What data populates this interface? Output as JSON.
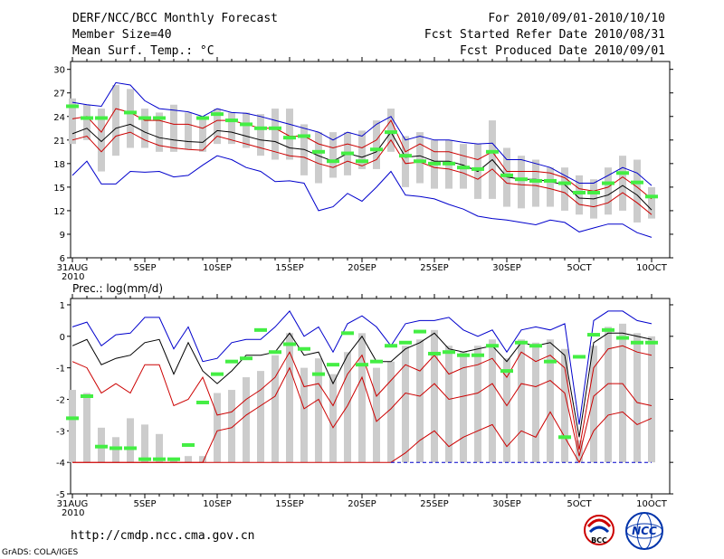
{
  "header": {
    "title": "DERF/NCC/BCC Monthly Forecast",
    "member": "Member Size=40",
    "variable1": "Mean Surf. Temp.: °C",
    "period": "For 2010/09/01-2010/10/10",
    "started": "Fcst Started Refer Date 2010/08/31",
    "produced": "Fcst Produced Date 2010/09/01"
  },
  "footer": {
    "url": "http://cmdp.ncc.cma.gov.cn",
    "grads": "GrADS: COLA/IGES",
    "logo1": "BCC",
    "logo2": "NCC"
  },
  "x_ticks": [
    "31AUG",
    "5SEP",
    "10SEP",
    "15SEP",
    "20SEP",
    "25SEP",
    "30SEP",
    "5OCT",
    "10OCT"
  ],
  "x_year": "2010",
  "colors": {
    "blue": "#0000cc",
    "red": "#cc0000",
    "mean": "#000000",
    "obs": "#44ee44",
    "box": "#cccccc",
    "dashed": "#0000cc"
  },
  "chart_data": [
    {
      "type": "line",
      "title": "Mean Surf. Temp.: °C",
      "x_start_label": "31AUG",
      "days": 41,
      "ylim": [
        6,
        31
      ],
      "yticks": [
        6,
        9,
        12,
        15,
        18,
        21,
        24,
        27,
        30
      ],
      "series": [
        {
          "name": "max",
          "color": "blue",
          "values": [
            25.8,
            25.5,
            25.3,
            28.3,
            28,
            26,
            25,
            24.8,
            24.6,
            24,
            25,
            24.5,
            24.4,
            24,
            23.5,
            23,
            22.5,
            22,
            21,
            22,
            21.5,
            23,
            24,
            21,
            21.5,
            21,
            21,
            20.7,
            20.5,
            20.6,
            18.5,
            18.5,
            18,
            17.5,
            16.5,
            15.5,
            15.5,
            16.5,
            17.5,
            16.8,
            15.2
          ]
        },
        {
          "name": "upper",
          "color": "red",
          "values": [
            23.7,
            24,
            22,
            25,
            24.5,
            23.5,
            23.5,
            23,
            23,
            22.5,
            23.5,
            23.5,
            23,
            22.5,
            22.5,
            21.5,
            21.5,
            20.5,
            20,
            20.5,
            20,
            21,
            23.5,
            19.5,
            20.5,
            19.5,
            19.5,
            19,
            18.5,
            19.5,
            17,
            17,
            17,
            16.8,
            16.2,
            14.8,
            14.5,
            15,
            16.3,
            15,
            13.5
          ]
        },
        {
          "name": "mean",
          "color": "mean",
          "values": [
            21.8,
            22.5,
            20.8,
            22.5,
            23,
            22,
            21.3,
            21,
            20.8,
            20.7,
            22.2,
            22,
            21.5,
            21,
            20.8,
            20,
            19.8,
            19,
            18.3,
            19.3,
            18.8,
            19.5,
            22,
            18.8,
            19,
            18.3,
            18.3,
            17.8,
            17,
            18.5,
            16.3,
            16,
            16,
            15.7,
            15.3,
            13.6,
            13.5,
            14,
            15.2,
            14,
            12.1
          ]
        },
        {
          "name": "lower",
          "color": "red",
          "values": [
            21,
            21.5,
            19.5,
            21.5,
            22,
            21,
            20.3,
            20,
            19.8,
            19.7,
            21.5,
            21,
            20.5,
            20,
            19.5,
            19,
            18.8,
            18,
            17.5,
            18.3,
            17.7,
            18.5,
            21,
            18,
            18.2,
            17.5,
            17.3,
            16.8,
            16,
            17.3,
            15.5,
            15.3,
            15.2,
            14.8,
            14.3,
            12.8,
            12.5,
            13,
            14.3,
            13,
            11.5
          ]
        },
        {
          "name": "min",
          "color": "blue",
          "values": [
            16.5,
            18.3,
            15.4,
            15.4,
            17,
            16.9,
            17,
            16.3,
            16.5,
            17.8,
            19,
            18.5,
            17.5,
            17,
            15.7,
            15.8,
            15.5,
            12,
            12.5,
            14.2,
            13.2,
            15,
            17,
            14,
            13.8,
            13.5,
            12.8,
            12.2,
            11.3,
            11,
            10.8,
            10.5,
            10.2,
            10.8,
            10.5,
            9.3,
            9.8,
            10.3,
            10.3,
            9.2,
            8.6
          ]
        }
      ],
      "boxes": [
        [
          20.5,
          26.3
        ],
        [
          21,
          25.5
        ],
        [
          17,
          25
        ],
        [
          19,
          28
        ],
        [
          20,
          27.5
        ],
        [
          20,
          25
        ],
        [
          19.5,
          24.5
        ],
        [
          19.5,
          25.5
        ],
        [
          19.8,
          24.5
        ],
        [
          19.5,
          24
        ],
        [
          20.5,
          25
        ],
        [
          20.5,
          24.5
        ],
        [
          20,
          24.5
        ],
        [
          19,
          24.3
        ],
        [
          18.5,
          25
        ],
        [
          18.5,
          25
        ],
        [
          16.5,
          23
        ],
        [
          15.5,
          22
        ],
        [
          16.2,
          22
        ],
        [
          16.5,
          22
        ],
        [
          17.3,
          22.2
        ],
        [
          17.3,
          23.5
        ],
        [
          19.5,
          25
        ],
        [
          15,
          21.5
        ],
        [
          15.5,
          22
        ],
        [
          14.8,
          21
        ],
        [
          14.8,
          21
        ],
        [
          14.8,
          20.5
        ],
        [
          13.5,
          20.5
        ],
        [
          13.5,
          23.5
        ],
        [
          12.5,
          20
        ],
        [
          12.3,
          19
        ],
        [
          12.5,
          18.5
        ],
        [
          12.5,
          17.5
        ],
        [
          12,
          17.5
        ],
        [
          11.5,
          16.5
        ],
        [
          11,
          16
        ],
        [
          11.5,
          17.5
        ],
        [
          12,
          19
        ],
        [
          10.5,
          18.5
        ],
        [
          11,
          15
        ]
      ],
      "observed": [
        25.3,
        23.8,
        23.8,
        null,
        24.5,
        23.8,
        23.8,
        null,
        null,
        23.8,
        24.3,
        23.5,
        23,
        22.5,
        22.5,
        21.3,
        21.5,
        19.5,
        18.3,
        19.3,
        18.3,
        19.8,
        22,
        19,
        18.3,
        18,
        18,
        17.5,
        17.3,
        19.5,
        16.5,
        16,
        15.8,
        15.8,
        15.5,
        14.3,
        14.3,
        15.5,
        16.8,
        15.6,
        13.8
      ]
    },
    {
      "type": "line",
      "title": "Prec.: log(mm/d)",
      "x_start_label": "31AUG",
      "days": 41,
      "ylim": [
        -5,
        1.2
      ],
      "yticks": [
        -5,
        -4,
        -3,
        -2,
        -1,
        0,
        1
      ],
      "series": [
        {
          "name": "max",
          "color": "blue",
          "values": [
            0.3,
            0.45,
            -0.3,
            0.05,
            0.1,
            0.6,
            0.6,
            -0.4,
            0.3,
            -0.8,
            -0.7,
            -0.2,
            -0.1,
            -0.1,
            0.3,
            0.8,
            0,
            0.3,
            -0.5,
            0.4,
            0.65,
            0.3,
            -0.3,
            0.4,
            0.5,
            0.5,
            0.6,
            0.2,
            0,
            0.2,
            -0.5,
            0.2,
            0.3,
            0.2,
            0.4,
            -2.8,
            0.5,
            0.8,
            0.8,
            0.5,
            0.4
          ]
        },
        {
          "name": "upper",
          "color": "black",
          "values": [
            -0.3,
            -0.1,
            -0.9,
            -0.7,
            -0.6,
            -0.2,
            -0.1,
            -1.2,
            -0.2,
            -1.1,
            -1.5,
            -1.1,
            -0.6,
            -0.6,
            -0.5,
            0.1,
            -0.6,
            -0.5,
            -1.5,
            -0.6,
            0,
            -0.8,
            -0.8,
            -0.4,
            -0.2,
            0.1,
            -0.4,
            -0.5,
            -0.4,
            -0.3,
            -0.8,
            -0.2,
            -0.3,
            -0.2,
            -0.6,
            -3.2,
            -0.2,
            0.1,
            0.1,
            0,
            -0.1
          ]
        },
        {
          "name": "mean",
          "color": "red",
          "values": [
            -0.8,
            -1,
            -1.8,
            -1.5,
            -1.8,
            -0.9,
            -0.9,
            -2.2,
            -2,
            -1.3,
            -2.5,
            -2.4,
            -2,
            -1.7,
            -1.3,
            -0.5,
            -1.6,
            -1.5,
            -2.2,
            -1.2,
            -0.6,
            -1.9,
            -1.4,
            -0.9,
            -1.1,
            -0.6,
            -1.2,
            -1,
            -0.9,
            -0.7,
            -1.3,
            -0.5,
            -0.8,
            -0.6,
            -1,
            -3.6,
            -1,
            -0.4,
            -0.3,
            -0.5,
            -0.6
          ]
        },
        {
          "name": "lower",
          "color": "red",
          "values": [
            -4,
            -4,
            -4,
            -4,
            -4,
            -4,
            -4,
            -4,
            -4,
            -4,
            -3,
            -2.9,
            -2.5,
            -2.2,
            -1.9,
            -1,
            -2.3,
            -2,
            -2.9,
            -2.2,
            -1.3,
            -2.7,
            -2.3,
            -1.8,
            -1.9,
            -1.5,
            -2,
            -1.9,
            -1.8,
            -1.5,
            -2.2,
            -1.5,
            -1.6,
            -1.4,
            -1.8,
            -3.8,
            -1.9,
            -1.5,
            -1.5,
            -2.1,
            -2.2
          ]
        },
        {
          "name": "min",
          "color": "red",
          "values": [
            -4,
            -4,
            -4,
            -4,
            -4,
            -4,
            -4,
            -4,
            -4,
            -4,
            -4,
            -4,
            -4,
            -4,
            -4,
            -4,
            -4,
            -4,
            -4,
            -4,
            -4,
            -4,
            -4,
            -3.7,
            -3.3,
            -3,
            -3.5,
            -3.2,
            -3,
            -2.8,
            -3.5,
            -3,
            -3.2,
            -2.4,
            -3.2,
            -4,
            -3,
            -2.5,
            -2.4,
            -2.8,
            -2.6
          ]
        },
        {
          "name": "floor",
          "color": "dashed",
          "values": [
            null,
            null,
            null,
            null,
            null,
            null,
            null,
            null,
            null,
            null,
            null,
            null,
            null,
            null,
            null,
            null,
            null,
            null,
            null,
            null,
            null,
            null,
            -4,
            -4,
            -4,
            -4,
            -4,
            -4,
            -4,
            -4,
            -4,
            -4,
            -4,
            -4,
            -4,
            -4,
            -4,
            -4,
            -4,
            -4,
            -4
          ]
        }
      ],
      "boxes": [
        [
          -4,
          -1.7
        ],
        [
          -4,
          -1.8
        ],
        [
          -4,
          -2.9
        ],
        [
          -4,
          -3.2
        ],
        [
          -4,
          -2.6
        ],
        [
          -4,
          -2.8
        ],
        [
          -4,
          -3.1
        ],
        [
          -4,
          -3.9
        ],
        [
          -4,
          -3.8
        ],
        [
          -4,
          -3.8
        ],
        [
          -4,
          -1.8
        ],
        [
          -4,
          -1.7
        ],
        [
          -4,
          -1.3
        ],
        [
          -4,
          -1.1
        ],
        [
          -4,
          -0.6
        ],
        [
          -4,
          0.1
        ],
        [
          -4,
          -1
        ],
        [
          -4,
          -0.7
        ],
        [
          -4,
          -1.2
        ],
        [
          -4,
          -0.5
        ],
        [
          -4,
          0.1
        ],
        [
          -4,
          -1
        ],
        [
          -4,
          -0.8
        ],
        [
          -4,
          -0.3
        ],
        [
          -4,
          -0.1
        ],
        [
          -4,
          0.2
        ],
        [
          -4,
          -0.3
        ],
        [
          -4,
          -0.5
        ],
        [
          -4,
          -0.3
        ],
        [
          -4,
          -0.1
        ],
        [
          -4,
          -0.7
        ],
        [
          -4,
          -0.1
        ],
        [
          -4,
          -0.2
        ],
        [
          -4,
          -0.1
        ],
        [
          -4,
          -0.4
        ],
        [
          -4,
          -3.3
        ],
        [
          -4,
          -0.3
        ],
        [
          -4,
          0.3
        ],
        [
          -4,
          0.4
        ],
        [
          -4,
          0.1
        ],
        [
          -4,
          0
        ]
      ],
      "observed": [
        -2.6,
        -1.9,
        -3.5,
        -3.55,
        -3.55,
        -3.9,
        -3.9,
        -3.9,
        -3.45,
        -2.1,
        -1.2,
        -0.8,
        -0.7,
        0.2,
        -0.5,
        -0.25,
        -0.4,
        -1.2,
        -0.9,
        0.1,
        -0.9,
        -0.8,
        -0.3,
        -0.2,
        0.15,
        -0.55,
        -0.5,
        -0.6,
        -0.6,
        -0.3,
        -1.1,
        -0.2,
        -0.3,
        -0.8,
        -3.2,
        -0.65,
        0.05,
        0.2,
        -0.05,
        -0.2,
        -0.2
      ]
    }
  ]
}
